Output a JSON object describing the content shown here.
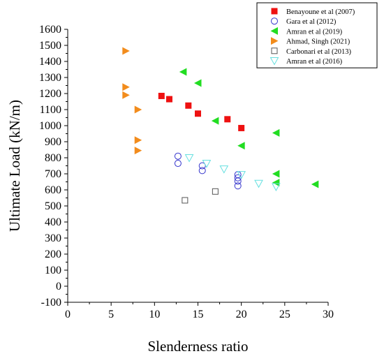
{
  "chart_data": {
    "type": "scatter",
    "title": "",
    "xlabel": "Slenderness ratio",
    "ylabel": "Ultimate Load (kN/m)",
    "xlim": [
      0,
      30
    ],
    "ylim": [
      -100,
      1600
    ],
    "xticks": [
      "0",
      "5",
      "10",
      "15",
      "20",
      "25",
      "30"
    ],
    "yticks": [
      "-100",
      "0",
      "100",
      "200",
      "300",
      "400",
      "500",
      "600",
      "700",
      "800",
      "900",
      "1000",
      "1100",
      "1200",
      "1300",
      "1400",
      "1500",
      "1600"
    ],
    "grid": false,
    "legend_position": "top-right",
    "series": [
      {
        "name": "Benayoune et al (2007)",
        "marker": "square-filled",
        "color": "#ee1111",
        "points": [
          [
            10.8,
            1185
          ],
          [
            11.7,
            1165
          ],
          [
            13.9,
            1125
          ],
          [
            15.0,
            1075
          ],
          [
            18.4,
            1040
          ],
          [
            20.0,
            985
          ]
        ]
      },
      {
        "name": "Gara et al (2012)",
        "marker": "circle-open",
        "color": "#3333cc",
        "points": [
          [
            12.7,
            810
          ],
          [
            12.7,
            765
          ],
          [
            15.5,
            750
          ],
          [
            15.5,
            720
          ],
          [
            19.6,
            695
          ],
          [
            19.6,
            675
          ],
          [
            19.6,
            655
          ],
          [
            19.6,
            625
          ]
        ]
      },
      {
        "name": "Amran et al (2019)",
        "marker": "triangle-left-filled",
        "color": "#22dd22",
        "points": [
          [
            13.3,
            1335
          ],
          [
            15.0,
            1265
          ],
          [
            17.0,
            1030
          ],
          [
            20.0,
            875
          ],
          [
            24.0,
            955
          ],
          [
            24.0,
            700
          ],
          [
            24.0,
            645
          ],
          [
            28.5,
            635
          ]
        ]
      },
      {
        "name": "Ahmad, Singh (2021)",
        "marker": "triangle-right-filled",
        "color": "#f28c1c",
        "points": [
          [
            6.7,
            1465
          ],
          [
            6.7,
            1240
          ],
          [
            6.7,
            1190
          ],
          [
            8.1,
            1100
          ],
          [
            8.1,
            910
          ],
          [
            8.1,
            845
          ]
        ]
      },
      {
        "name": "Carbonari et al (2013)",
        "marker": "square-open",
        "color": "#555555",
        "points": [
          [
            13.5,
            535
          ],
          [
            17.0,
            590
          ]
        ]
      },
      {
        "name": "Amran et al (2016)",
        "marker": "triangle-down-open",
        "color": "#66e0e0",
        "points": [
          [
            14.0,
            800
          ],
          [
            16.0,
            765
          ],
          [
            18.0,
            730
          ],
          [
            20.0,
            695
          ],
          [
            22.0,
            640
          ],
          [
            24.0,
            620
          ]
        ]
      }
    ]
  }
}
